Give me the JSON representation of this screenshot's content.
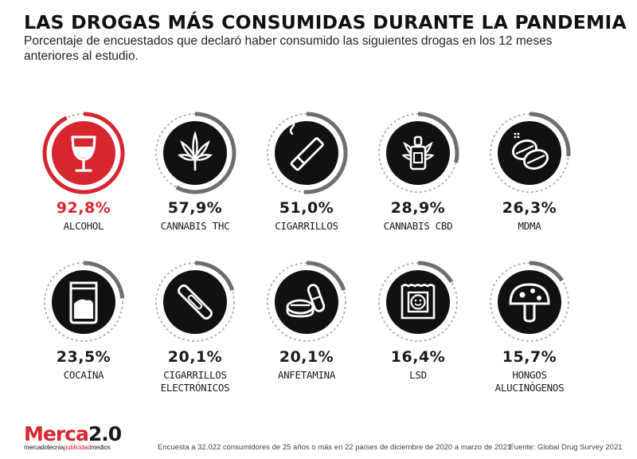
{
  "header": {
    "title": "LAS DROGAS MÁS CONSUMIDAS DURANTE LA PANDEMIA",
    "subtitle": "Porcentaje de encuestados que declaró haber consumido las siguientes drogas en los 12 meses anteriores al estudio."
  },
  "chart_data": {
    "type": "radial-progress",
    "unit": "%",
    "max": 100,
    "items": [
      {
        "label": "ALCOHOL",
        "value": 92.8,
        "value_label": "92,8%",
        "icon": "wine-glass-icon",
        "highlight": true
      },
      {
        "label": "CANNABIS THC",
        "value": 57.9,
        "value_label": "57,9%",
        "icon": "cannabis-leaf-icon"
      },
      {
        "label": "CIGARRILLOS",
        "value": 51.0,
        "value_label": "51,0%",
        "icon": "cigarette-icon"
      },
      {
        "label": "CANNABIS CBD",
        "value": 28.9,
        "value_label": "28,9%",
        "icon": "cbd-dropper-icon"
      },
      {
        "label": "MDMA",
        "value": 26.3,
        "value_label": "26,3%",
        "icon": "pills-icon"
      },
      {
        "label": "COCAÍNA",
        "value": 23.5,
        "value_label": "23,5%",
        "icon": "powder-bag-icon"
      },
      {
        "label": "CIGARRILLOS ELECTRÓNICOS",
        "label_lines": [
          "CIGARRILLOS",
          "ELECTRÓNICOS"
        ],
        "value": 20.1,
        "value_label": "20,1%",
        "icon": "e-cigarette-icon"
      },
      {
        "label": "ANFETAMINA",
        "value": 20.1,
        "value_label": "20,1%",
        "icon": "amphetamine-pills-icon"
      },
      {
        "label": "LSD",
        "value": 16.4,
        "value_label": "16,4%",
        "icon": "lsd-blotter-icon"
      },
      {
        "label": "HONGOS ALUCINÓGENOS",
        "label_lines": [
          "HONGOS",
          "ALUCINÓGENOS"
        ],
        "value": 15.7,
        "value_label": "15,7%",
        "icon": "mushroom-icon"
      }
    ]
  },
  "colors": {
    "accent": "#d7262e",
    "dark": "#111111",
    "track": "#b5b5b5",
    "progress": "#6e6e6e"
  },
  "footer": {
    "logo_main_red": "Merca",
    "logo_main_dark": "2.0",
    "logo_sub_1": "mercadotecnia",
    "logo_sub_2": "publicidad",
    "logo_sub_3": "medios",
    "note": "Encuesta a 32.022 consumidores de 25 años o más en 22 países de diciembre de 2020 a marzo de 2021.",
    "source": "Fuente: Global Drug Survey 2021"
  }
}
